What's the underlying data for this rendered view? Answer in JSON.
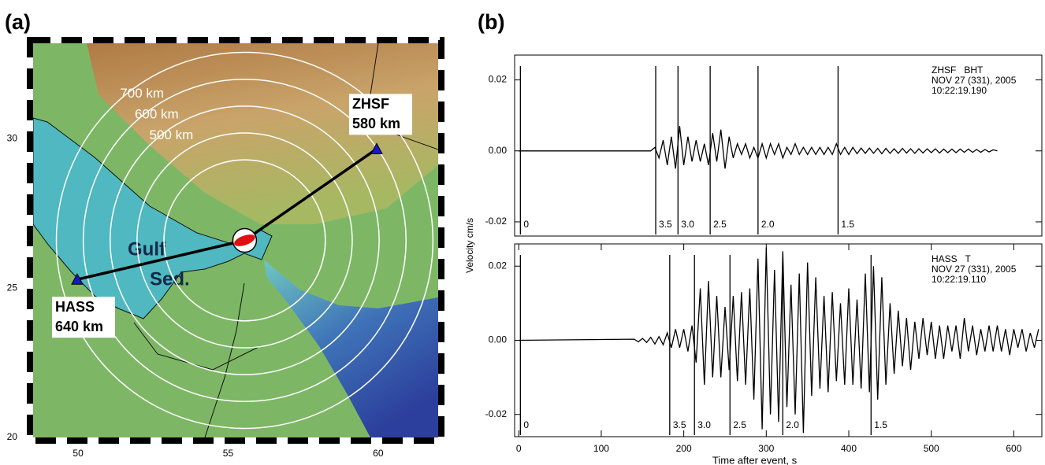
{
  "chart_data": [
    {
      "type": "map",
      "panel_label": "(a)",
      "xlim": [
        48.5,
        62
      ],
      "ylim": [
        20,
        33.2
      ],
      "xticks": [
        50,
        55,
        60
      ],
      "yticks": [
        20,
        25,
        30
      ],
      "event": {
        "lon": 55.55,
        "lat": 26.6
      },
      "stations": [
        {
          "name": "HASS",
          "distance": "640 km",
          "lon": 49.97,
          "lat": 25.29
        },
        {
          "name": "ZHSF",
          "distance": "580 km",
          "lon": 59.95,
          "lat": 29.66
        }
      ],
      "rings": {
        "radii_km": [
          300,
          400,
          500,
          600,
          700
        ],
        "labels": [
          null,
          null,
          "500 km",
          "600 km",
          "700 km"
        ]
      },
      "annotations": [
        "Gulf",
        "Sed."
      ]
    },
    {
      "type": "line",
      "panel_label": "(b)",
      "ylabel": "Velocity cm/s",
      "annotations": [
        "ZHSF   BHT",
        "NOV 27 (331), 2005",
        "10:22:19.190"
      ],
      "xlim": [
        -5,
        634
      ],
      "ylim": [
        -0.024,
        0.027
      ],
      "yticks": [
        0.02,
        {
          "value": 0,
          "label": "0.00"
        },
        -0.02
      ],
      "markers": [
        {
          "value": 2,
          "label": "0"
        },
        {
          "value": 166,
          "label": "3.5"
        },
        {
          "value": 193,
          "label": "3.0"
        },
        {
          "value": 232,
          "label": "2.5"
        },
        {
          "value": 290,
          "label": "2.0"
        },
        {
          "value": 387,
          "label": "1.5"
        }
      ],
      "color": "#000000",
      "x": [
        0,
        160,
        165,
        170,
        175,
        180,
        185,
        190,
        195,
        200,
        205,
        210,
        215,
        220,
        225,
        230,
        235,
        240,
        245,
        250,
        255,
        260,
        265,
        270,
        275,
        280,
        285,
        290,
        295,
        300,
        305,
        310,
        315,
        320,
        325,
        330,
        335,
        340,
        345,
        350,
        355,
        360,
        365,
        370,
        375,
        380,
        385,
        390,
        395,
        400,
        405,
        410,
        415,
        420,
        425,
        430,
        435,
        440,
        445,
        450,
        455,
        460,
        465,
        470,
        475,
        480,
        485,
        490,
        495,
        500,
        505,
        510,
        515,
        520,
        525,
        530,
        535,
        540,
        545,
        550,
        555,
        560,
        565,
        570,
        575,
        580
      ],
      "values": [
        0,
        0,
        0.001,
        -0.002,
        0.003,
        -0.004,
        0.004,
        -0.005,
        0.007,
        -0.004,
        0.004,
        -0.003,
        0.003,
        -0.003,
        0.002,
        -0.004,
        0.005,
        -0.003,
        0.006,
        -0.005,
        0.004,
        -0.002,
        0.002,
        -0.001,
        0.002,
        -0.002,
        0.001,
        -0.002,
        0.002,
        -0.002,
        0.002,
        -0.001,
        0.002,
        -0.002,
        0.001,
        -0.001,
        0.002,
        -0.001,
        0.001,
        -0.001,
        0.001,
        -0.001,
        0.001,
        -0.001,
        0.001,
        -0.001,
        0.002,
        -0.001,
        0.001,
        -0.001,
        0.001,
        -0.0008,
        0.0008,
        -0.0007,
        0.0008,
        -0.0007,
        0.0007,
        -0.0008,
        0.0007,
        -0.0007,
        0.0006,
        -0.0007,
        0.0007,
        -0.0006,
        0.0006,
        -0.0007,
        0.0006,
        -0.0006,
        0.0006,
        -0.0005,
        0.0006,
        -0.0006,
        0.0005,
        -0.0005,
        0.0005,
        -0.0005,
        0.0005,
        -0.0004,
        0.0005,
        -0.0004,
        0.0004,
        -0.0004,
        0.0004,
        -0.0003,
        0.0003,
        0
      ]
    },
    {
      "type": "line",
      "xlabel": "Time after event, s",
      "annotations": [
        "HASS   T",
        "NOV 27 (331), 2005",
        "10:22:19.110"
      ],
      "xlim": [
        -5,
        634
      ],
      "ylim": [
        -0.026,
        0.026
      ],
      "xticks": [
        0,
        100,
        200,
        300,
        400,
        500,
        600
      ],
      "yticks": [
        0.02,
        {
          "value": 0,
          "label": "0.00"
        },
        -0.02
      ],
      "markers": [
        {
          "value": 2,
          "label": "0"
        },
        {
          "value": 183,
          "label": "3.5"
        },
        {
          "value": 213,
          "label": "3.0"
        },
        {
          "value": 256,
          "label": "2.5"
        },
        {
          "value": 320,
          "label": "2.0"
        },
        {
          "value": 427,
          "label": "1.5"
        }
      ],
      "color": "#000000",
      "x": [
        0,
        140,
        145,
        150,
        155,
        160,
        165,
        170,
        175,
        180,
        185,
        190,
        195,
        200,
        205,
        210,
        215,
        220,
        225,
        230,
        235,
        240,
        245,
        250,
        255,
        260,
        265,
        270,
        275,
        280,
        285,
        290,
        295,
        300,
        305,
        310,
        315,
        320,
        325,
        330,
        335,
        340,
        345,
        350,
        355,
        360,
        365,
        370,
        375,
        380,
        385,
        390,
        395,
        400,
        405,
        410,
        415,
        420,
        425,
        430,
        435,
        440,
        445,
        450,
        455,
        460,
        465,
        470,
        475,
        480,
        485,
        490,
        495,
        500,
        505,
        510,
        515,
        520,
        525,
        530,
        535,
        540,
        545,
        550,
        555,
        560,
        565,
        570,
        575,
        580,
        585,
        590,
        595,
        600,
        605,
        610,
        615,
        620,
        625,
        630
      ],
      "values": [
        0,
        0.0003,
        -0.0004,
        0.0005,
        -0.0006,
        0.0008,
        -0.001,
        0.001,
        -0.0012,
        0.002,
        -0.002,
        0.003,
        -0.002,
        0.003,
        -0.003,
        0.004,
        -0.006,
        0.014,
        -0.012,
        0.016,
        -0.01,
        0.012,
        -0.01,
        0.009,
        -0.008,
        0.012,
        -0.011,
        0.013,
        -0.012,
        0.014,
        -0.016,
        0.022,
        -0.024,
        0.025,
        -0.02,
        0.019,
        -0.022,
        0.024,
        -0.018,
        0.015,
        -0.02,
        0.018,
        -0.025,
        0.021,
        -0.015,
        0.017,
        -0.013,
        0.012,
        -0.014,
        0.013,
        -0.011,
        0.01,
        -0.012,
        0.014,
        -0.012,
        0.011,
        -0.013,
        0.018,
        -0.014,
        0.02,
        -0.016,
        0.017,
        -0.012,
        0.01,
        -0.009,
        0.008,
        -0.007,
        0.006,
        -0.008,
        0.005,
        -0.005,
        0.006,
        -0.004,
        0.005,
        -0.005,
        0.004,
        -0.005,
        0.004,
        -0.003,
        0.004,
        -0.005,
        0.006,
        -0.003,
        0.004,
        -0.004,
        0.003,
        -0.003,
        0.004,
        -0.003,
        0.004,
        -0.003,
        0.003,
        -0.004,
        0.003,
        -0.002,
        0.003,
        -0.003,
        0.002,
        -0.002,
        0.003
      ]
    }
  ]
}
